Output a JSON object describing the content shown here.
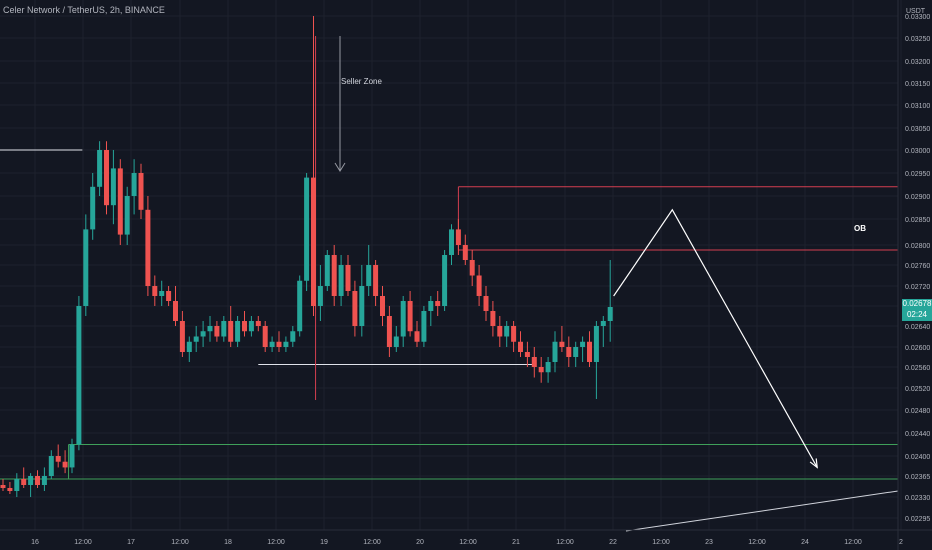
{
  "header": {
    "symbol": "Celer Network / TetherUS",
    "interval": "2h",
    "exchange": "BINANCE"
  },
  "price_scale": {
    "currency": "USDT",
    "current_price": "0.02678",
    "countdown": "02:24"
  },
  "colors": {
    "background": "#131722",
    "up": "#26a69a",
    "down": "#ef5350",
    "grid": "#1e222d",
    "axis_text": "#b2b5be",
    "annotation_red": "#d33f50",
    "annotation_green": "#3fa05a",
    "annotation_white": "#e0e3eb"
  },
  "chart_data": {
    "type": "candlestick",
    "y_ticks": [
      "0.03300",
      "0.03250",
      "0.03200",
      "0.03150",
      "0.03100",
      "0.03050",
      "0.03000",
      "0.02950",
      "0.02900",
      "0.02850",
      "0.02800",
      "0.02760",
      "0.02720",
      "0.02680",
      "0.02640",
      "0.02600",
      "0.02560",
      "0.02520",
      "0.02480",
      "0.02440",
      "0.02400",
      "0.02365",
      "0.02330",
      "0.02295"
    ],
    "x_ticks": [
      "16",
      "12:00",
      "17",
      "12:00",
      "18",
      "12:00",
      "19",
      "12:00",
      "20",
      "12:00",
      "21",
      "12:00",
      "22",
      "12:00",
      "23",
      "12:00",
      "24",
      "12:00",
      "2"
    ],
    "candles": [
      [
        0.0235,
        0.0236,
        0.0234,
        0.02345
      ],
      [
        0.02345,
        0.02355,
        0.02335,
        0.0234
      ],
      [
        0.0234,
        0.0237,
        0.0233,
        0.0236
      ],
      [
        0.0236,
        0.0238,
        0.02345,
        0.0235
      ],
      [
        0.0235,
        0.0237,
        0.0233,
        0.02365
      ],
      [
        0.02365,
        0.02375,
        0.02345,
        0.0235
      ],
      [
        0.0235,
        0.0238,
        0.0234,
        0.02365
      ],
      [
        0.02365,
        0.0241,
        0.0236,
        0.024
      ],
      [
        0.024,
        0.0242,
        0.0238,
        0.0239
      ],
      [
        0.0239,
        0.0241,
        0.0237,
        0.0238
      ],
      [
        0.0238,
        0.0243,
        0.0237,
        0.0242
      ],
      [
        0.0242,
        0.027,
        0.0241,
        0.0268
      ],
      [
        0.0268,
        0.0286,
        0.0266,
        0.0283
      ],
      [
        0.0283,
        0.0295,
        0.0281,
        0.0292
      ],
      [
        0.0292,
        0.0302,
        0.029,
        0.03
      ],
      [
        0.03,
        0.0302,
        0.0286,
        0.0288
      ],
      [
        0.0288,
        0.03,
        0.0284,
        0.0296
      ],
      [
        0.0296,
        0.0298,
        0.028,
        0.0282
      ],
      [
        0.0282,
        0.0292,
        0.028,
        0.029
      ],
      [
        0.029,
        0.0298,
        0.0286,
        0.0295
      ],
      [
        0.0295,
        0.0297,
        0.0285,
        0.0287
      ],
      [
        0.0287,
        0.029,
        0.027,
        0.0272
      ],
      [
        0.0272,
        0.0274,
        0.0268,
        0.027
      ],
      [
        0.027,
        0.0273,
        0.0268,
        0.0271
      ],
      [
        0.0271,
        0.0272,
        0.0268,
        0.0269
      ],
      [
        0.0269,
        0.0272,
        0.0264,
        0.0265
      ],
      [
        0.0265,
        0.0267,
        0.0258,
        0.0259
      ],
      [
        0.0259,
        0.0262,
        0.0257,
        0.0261
      ],
      [
        0.0261,
        0.0264,
        0.0259,
        0.0262
      ],
      [
        0.0262,
        0.0265,
        0.026,
        0.0263
      ],
      [
        0.0263,
        0.0266,
        0.0261,
        0.0264
      ],
      [
        0.0264,
        0.0265,
        0.0261,
        0.0262
      ],
      [
        0.0262,
        0.0266,
        0.0261,
        0.0265
      ],
      [
        0.0265,
        0.0268,
        0.026,
        0.0261
      ],
      [
        0.0261,
        0.0266,
        0.026,
        0.0265
      ],
      [
        0.0265,
        0.0267,
        0.0262,
        0.0263
      ],
      [
        0.0263,
        0.0266,
        0.0262,
        0.0265
      ],
      [
        0.0265,
        0.0266,
        0.0263,
        0.0264
      ],
      [
        0.0264,
        0.0265,
        0.0259,
        0.026
      ],
      [
        0.026,
        0.0262,
        0.0259,
        0.0261
      ],
      [
        0.0261,
        0.0263,
        0.0259,
        0.026
      ],
      [
        0.026,
        0.0262,
        0.0259,
        0.0261
      ],
      [
        0.0261,
        0.0264,
        0.026,
        0.0263
      ],
      [
        0.0263,
        0.0274,
        0.0262,
        0.0273
      ],
      [
        0.0273,
        0.0295,
        0.0271,
        0.0294
      ],
      [
        0.0294,
        0.033,
        0.0266,
        0.0268
      ],
      [
        0.0268,
        0.0276,
        0.0265,
        0.0272
      ],
      [
        0.0272,
        0.0279,
        0.0271,
        0.0278
      ],
      [
        0.0278,
        0.028,
        0.0268,
        0.027
      ],
      [
        0.027,
        0.0278,
        0.0268,
        0.0276
      ],
      [
        0.0276,
        0.0278,
        0.027,
        0.0271
      ],
      [
        0.0271,
        0.0273,
        0.0262,
        0.0264
      ],
      [
        0.0264,
        0.0276,
        0.0262,
        0.0272
      ],
      [
        0.0272,
        0.028,
        0.027,
        0.0276
      ],
      [
        0.0276,
        0.0277,
        0.0268,
        0.027
      ],
      [
        0.027,
        0.0272,
        0.0264,
        0.0266
      ],
      [
        0.0266,
        0.0268,
        0.0258,
        0.026
      ],
      [
        0.026,
        0.0264,
        0.0259,
        0.0262
      ],
      [
        0.0262,
        0.027,
        0.026,
        0.0269
      ],
      [
        0.0269,
        0.0271,
        0.0262,
        0.0263
      ],
      [
        0.0263,
        0.0265,
        0.026,
        0.0261
      ],
      [
        0.0261,
        0.0268,
        0.026,
        0.0267
      ],
      [
        0.0267,
        0.027,
        0.0264,
        0.0269
      ],
      [
        0.0269,
        0.0271,
        0.0266,
        0.0268
      ],
      [
        0.0268,
        0.0279,
        0.0267,
        0.0278
      ],
      [
        0.0278,
        0.0284,
        0.0276,
        0.0283
      ],
      [
        0.0283,
        0.0285,
        0.0278,
        0.028
      ],
      [
        0.028,
        0.0282,
        0.0276,
        0.0277
      ],
      [
        0.0277,
        0.0279,
        0.0272,
        0.0274
      ],
      [
        0.0274,
        0.0276,
        0.0268,
        0.027
      ],
      [
        0.027,
        0.0272,
        0.0265,
        0.0267
      ],
      [
        0.0267,
        0.0269,
        0.0262,
        0.0264
      ],
      [
        0.0264,
        0.0266,
        0.026,
        0.0262
      ],
      [
        0.0262,
        0.0265,
        0.026,
        0.0264
      ],
      [
        0.0264,
        0.0265,
        0.0259,
        0.0261
      ],
      [
        0.0261,
        0.0263,
        0.0258,
        0.0259
      ],
      [
        0.0259,
        0.0261,
        0.0256,
        0.0258
      ],
      [
        0.0258,
        0.026,
        0.0254,
        0.0256
      ],
      [
        0.0256,
        0.0258,
        0.0253,
        0.0255
      ],
      [
        0.0255,
        0.0258,
        0.0253,
        0.0257
      ],
      [
        0.0257,
        0.0263,
        0.0255,
        0.0261
      ],
      [
        0.0261,
        0.0264,
        0.0259,
        0.026
      ],
      [
        0.026,
        0.0262,
        0.0256,
        0.0258
      ],
      [
        0.0258,
        0.0261,
        0.0256,
        0.026
      ],
      [
        0.026,
        0.0262,
        0.0257,
        0.0261
      ],
      [
        0.0261,
        0.0263,
        0.0256,
        0.0257
      ],
      [
        0.0257,
        0.0265,
        0.025,
        0.0264
      ],
      [
        0.0264,
        0.0266,
        0.026,
        0.0265
      ],
      [
        0.0265,
        0.0277,
        0.0261,
        0.02678
      ]
    ],
    "annotations": {
      "seller_zone_label": "Seller Zone",
      "ob_label": "OB",
      "ob_zone": {
        "top": 0.0292,
        "bottom": 0.0279
      },
      "support_zone": {
        "top": 0.0242,
        "bottom": 0.0236
      },
      "resistance_line": 0.03,
      "mid_line": 0.02565,
      "projection": [
        {
          "bar": 88.5,
          "price": 0.027
        },
        {
          "bar": 97,
          "price": 0.0287
        },
        {
          "bar": 118,
          "price": 0.0238
        }
      ]
    },
    "grid": true
  }
}
